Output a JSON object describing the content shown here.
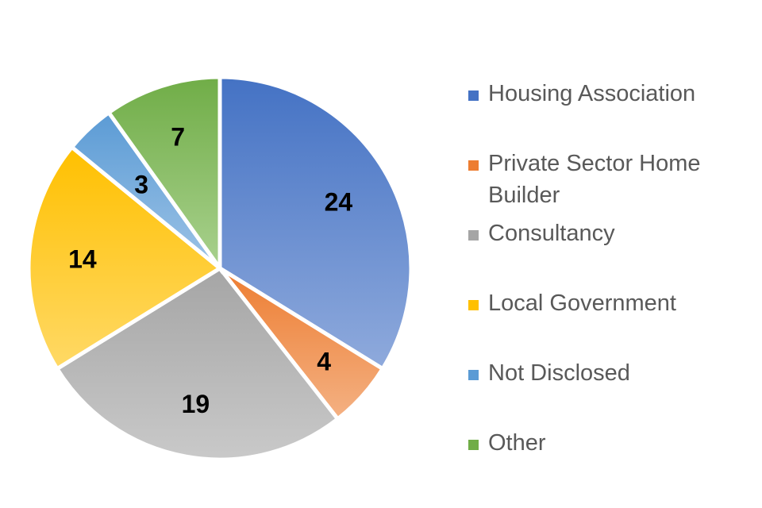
{
  "chart_data": {
    "type": "pie",
    "title": "",
    "legend_position": "right",
    "categories": [
      "Housing Association",
      "Private Sector Home Builder",
      "Consultancy",
      "Local Government",
      "Not Disclosed",
      "Other"
    ],
    "values": [
      24,
      4,
      19,
      14,
      3,
      7
    ],
    "colors": [
      [
        "#4472C4",
        "#8FAADC"
      ],
      [
        "#ED7D31",
        "#F4B183"
      ],
      [
        "#A5A5A5",
        "#C9C9C9"
      ],
      [
        "#FFC000",
        "#FFD966"
      ],
      [
        "#5B9BD5",
        "#9DC3E6"
      ],
      [
        "#70AD47",
        "#A9D18E"
      ]
    ],
    "legend_colors": [
      "#4472C4",
      "#ED7D31",
      "#A5A5A5",
      "#FFC000",
      "#5B9BD5",
      "#70AD47"
    ],
    "data_labels": [
      "24",
      "4",
      "19",
      "14",
      "3",
      "7"
    ]
  }
}
